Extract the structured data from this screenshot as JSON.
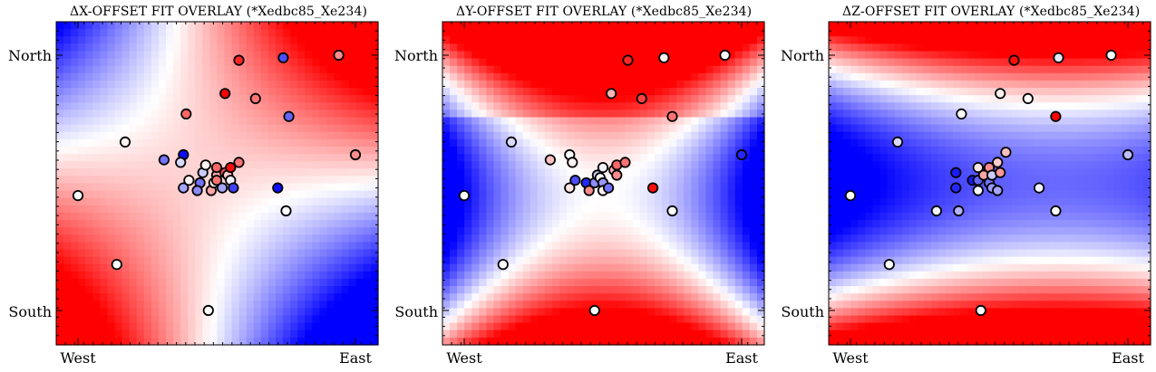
{
  "chart_data": [
    {
      "type": "scatter",
      "title": "ΔX-OFFSET FIT OVERLAY (*Xedbc85_Xe234)",
      "x_tick_labels": [
        "West",
        "East"
      ],
      "y_tick_labels": [
        "North",
        "South"
      ],
      "background": "smooth fitted surface, diverging blue-white-red colormap; red upper-left and lower-right, blue lower-left and right-center",
      "colors": {
        "low": "#0000ff",
        "mid": "#ffffff",
        "high": "#ff0000"
      },
      "points": [
        {
          "x": 0.0,
          "y": 0.55,
          "v": 0.0
        },
        {
          "x": 0.14,
          "y": 0.82,
          "v": 0.0
        },
        {
          "x": 0.17,
          "y": 0.34,
          "v": 0.05
        },
        {
          "x": 0.31,
          "y": 0.41,
          "v": -0.55
        },
        {
          "x": 0.38,
          "y": 0.39,
          "v": -0.95
        },
        {
          "x": 0.38,
          "y": 0.52,
          "v": -0.35
        },
        {
          "x": 0.37,
          "y": 0.42,
          "v": -0.15
        },
        {
          "x": 0.4,
          "y": 0.49,
          "v": 0.05
        },
        {
          "x": 0.44,
          "y": 0.5,
          "v": -0.55
        },
        {
          "x": 0.43,
          "y": 0.53,
          "v": -0.45
        },
        {
          "x": 0.45,
          "y": 0.46,
          "v": -0.2
        },
        {
          "x": 0.46,
          "y": 0.43,
          "v": 0.05
        },
        {
          "x": 0.48,
          "y": 0.53,
          "v": 0.35
        },
        {
          "x": 0.49,
          "y": 0.5,
          "v": 0.1
        },
        {
          "x": 0.5,
          "y": 0.47,
          "v": 0.35
        },
        {
          "x": 0.5,
          "y": 0.49,
          "v": 0.55
        },
        {
          "x": 0.5,
          "y": 0.44,
          "v": 0.6
        },
        {
          "x": 0.52,
          "y": 0.52,
          "v": -0.35
        },
        {
          "x": 0.53,
          "y": 0.46,
          "v": 0.7
        },
        {
          "x": 0.54,
          "y": 0.47,
          "v": 0.2
        },
        {
          "x": 0.55,
          "y": 0.44,
          "v": 0.95
        },
        {
          "x": 0.55,
          "y": 0.49,
          "v": -0.05
        },
        {
          "x": 0.56,
          "y": 0.52,
          "v": -0.75
        },
        {
          "x": 0.58,
          "y": 0.42,
          "v": 0.55
        },
        {
          "x": 0.39,
          "y": 0.23,
          "v": 0.6
        },
        {
          "x": 0.53,
          "y": 0.15,
          "v": 1.0
        },
        {
          "x": 0.64,
          "y": 0.17,
          "v": 0.55
        },
        {
          "x": 0.58,
          "y": 0.02,
          "v": 0.85
        },
        {
          "x": 0.72,
          "y": 0.52,
          "v": -0.95
        },
        {
          "x": 0.74,
          "y": 0.01,
          "v": -0.7
        },
        {
          "x": 0.76,
          "y": 0.24,
          "v": -0.6
        },
        {
          "x": 0.75,
          "y": 0.61,
          "v": 0.0
        },
        {
          "x": 0.94,
          "y": 0.0,
          "v": 0.45
        },
        {
          "x": 1.0,
          "y": 0.39,
          "v": 0.45
        },
        {
          "x": 0.47,
          "y": 1.0,
          "v": 0.0
        }
      ]
    },
    {
      "type": "scatter",
      "title": "ΔY-OFFSET FIT OVERLAY (*Xedbc85_Xe234)",
      "x_tick_labels": [
        "West",
        "East"
      ],
      "y_tick_labels": [
        "North",
        "South"
      ],
      "background": "smooth fitted surface, diverging blue-white-red colormap; red along top and bottom, blue at left and right, white X-shaped band",
      "colors": {
        "low": "#0000ff",
        "mid": "#ffffff",
        "high": "#ff0000"
      },
      "points": [
        {
          "x": 0.0,
          "y": 0.55,
          "v": 0.0
        },
        {
          "x": 0.14,
          "y": 0.82,
          "v": 0.0
        },
        {
          "x": 0.17,
          "y": 0.34,
          "v": -0.15
        },
        {
          "x": 0.31,
          "y": 0.41,
          "v": 0.25
        },
        {
          "x": 0.38,
          "y": 0.39,
          "v": 0.0
        },
        {
          "x": 0.38,
          "y": 0.52,
          "v": 0.1
        },
        {
          "x": 0.39,
          "y": 0.42,
          "v": 0.05
        },
        {
          "x": 0.4,
          "y": 0.49,
          "v": -0.7
        },
        {
          "x": 0.44,
          "y": 0.5,
          "v": -0.85
        },
        {
          "x": 0.45,
          "y": 0.53,
          "v": 0.45
        },
        {
          "x": 0.47,
          "y": 0.5,
          "v": -0.45
        },
        {
          "x": 0.48,
          "y": 0.47,
          "v": -0.2
        },
        {
          "x": 0.49,
          "y": 0.48,
          "v": 0.0
        },
        {
          "x": 0.5,
          "y": 0.5,
          "v": -0.4
        },
        {
          "x": 0.5,
          "y": 0.53,
          "v": 0.05
        },
        {
          "x": 0.5,
          "y": 0.44,
          "v": -0.05
        },
        {
          "x": 0.52,
          "y": 0.52,
          "v": -0.55
        },
        {
          "x": 0.54,
          "y": 0.45,
          "v": 0.3
        },
        {
          "x": 0.55,
          "y": 0.43,
          "v": 0.6
        },
        {
          "x": 0.55,
          "y": 0.47,
          "v": 0.45
        },
        {
          "x": 0.58,
          "y": 0.42,
          "v": 0.55
        },
        {
          "x": 0.53,
          "y": 0.15,
          "v": 0.3
        },
        {
          "x": 0.59,
          "y": 0.02,
          "v": 0.85
        },
        {
          "x": 0.64,
          "y": 0.17,
          "v": 0.75
        },
        {
          "x": 0.68,
          "y": 0.52,
          "v": 0.95
        },
        {
          "x": 0.72,
          "y": 0.01,
          "v": 0.05
        },
        {
          "x": 0.75,
          "y": 0.24,
          "v": 0.55
        },
        {
          "x": 0.75,
          "y": 0.61,
          "v": 0.0
        },
        {
          "x": 0.94,
          "y": 0.0,
          "v": 0.0
        },
        {
          "x": 1.0,
          "y": 0.39,
          "v": -0.85
        },
        {
          "x": 0.47,
          "y": 1.0,
          "v": 0.0
        }
      ]
    },
    {
      "type": "scatter",
      "title": "ΔZ-OFFSET FIT OVERLAY (*Xedbc85_Xe234)",
      "x_tick_labels": [
        "West",
        "East"
      ],
      "y_tick_labels": [
        "North",
        "South"
      ],
      "background": "smooth fitted surface, diverging blue-white-red colormap; red at top and bottom edges, blue on the left and center-left",
      "colors": {
        "low": "#0000ff",
        "mid": "#ffffff",
        "high": "#ff0000"
      },
      "points": [
        {
          "x": 0.0,
          "y": 0.55,
          "v": 0.0
        },
        {
          "x": 0.14,
          "y": 0.82,
          "v": 0.0
        },
        {
          "x": 0.17,
          "y": 0.34,
          "v": -0.15
        },
        {
          "x": 0.31,
          "y": 0.61,
          "v": -0.05
        },
        {
          "x": 0.38,
          "y": 0.46,
          "v": -0.9
        },
        {
          "x": 0.38,
          "y": 0.52,
          "v": -0.85
        },
        {
          "x": 0.39,
          "y": 0.61,
          "v": -0.3
        },
        {
          "x": 0.4,
          "y": 0.23,
          "v": 0.0
        },
        {
          "x": 0.44,
          "y": 0.49,
          "v": -0.9
        },
        {
          "x": 0.46,
          "y": 0.49,
          "v": -0.6
        },
        {
          "x": 0.46,
          "y": 0.53,
          "v": 0.0
        },
        {
          "x": 0.46,
          "y": 0.44,
          "v": 0.1
        },
        {
          "x": 0.48,
          "y": 0.47,
          "v": 0.35
        },
        {
          "x": 0.5,
          "y": 0.44,
          "v": 0.45
        },
        {
          "x": 0.5,
          "y": 0.5,
          "v": -0.55
        },
        {
          "x": 0.51,
          "y": 0.47,
          "v": -0.2
        },
        {
          "x": 0.51,
          "y": 0.52,
          "v": -0.4
        },
        {
          "x": 0.53,
          "y": 0.42,
          "v": 0.2
        },
        {
          "x": 0.53,
          "y": 0.53,
          "v": -0.35
        },
        {
          "x": 0.54,
          "y": 0.46,
          "v": 0.4
        },
        {
          "x": 0.54,
          "y": 0.15,
          "v": 0.05
        },
        {
          "x": 0.59,
          "y": 0.02,
          "v": 0.95
        },
        {
          "x": 0.64,
          "y": 0.17,
          "v": 0.0
        },
        {
          "x": 0.56,
          "y": 0.38,
          "v": 0.25
        },
        {
          "x": 0.68,
          "y": 0.52,
          "v": -0.05
        },
        {
          "x": 0.74,
          "y": 0.24,
          "v": 1.0
        },
        {
          "x": 0.74,
          "y": 0.61,
          "v": 0.0
        },
        {
          "x": 0.75,
          "y": 0.01,
          "v": -0.1
        },
        {
          "x": 0.94,
          "y": 0.0,
          "v": 0.0
        },
        {
          "x": 1.0,
          "y": 0.39,
          "v": -0.25
        },
        {
          "x": 0.47,
          "y": 1.0,
          "v": 0.0
        }
      ]
    }
  ]
}
